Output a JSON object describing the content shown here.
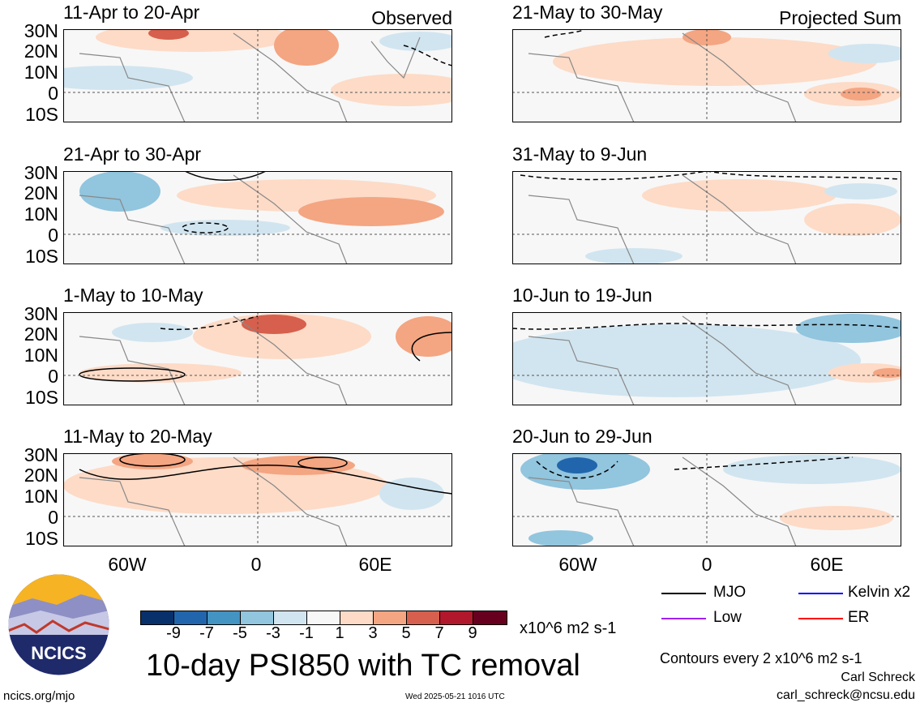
{
  "panels": [
    {
      "title": "11-Apr to 20-Apr",
      "tag": "Observed"
    },
    {
      "title": "21-Apr to 30-Apr",
      "tag": ""
    },
    {
      "title": "1-May to 10-May",
      "tag": ""
    },
    {
      "title": "11-May to 20-May",
      "tag": ""
    },
    {
      "title": "21-May to 30-May",
      "tag": "Projected Sum"
    },
    {
      "title": "31-May to 9-Jun",
      "tag": ""
    },
    {
      "title": "10-Jun to 19-Jun",
      "tag": ""
    },
    {
      "title": "20-Jun to 29-Jun",
      "tag": ""
    }
  ],
  "lat_labels": [
    "30N",
    "20N",
    "10N",
    "0",
    "10S"
  ],
  "lon_labels": [
    "60W",
    "0",
    "60E"
  ],
  "colorbar": {
    "colors": [
      "#08306b",
      "#2166ac",
      "#4393c3",
      "#92c5de",
      "#d1e5f0",
      "#f7f7f7",
      "#fddbc7",
      "#f4a582",
      "#d6604d",
      "#b2182b",
      "#67001f"
    ],
    "labels": [
      "-9",
      "-7",
      "-5",
      "-3",
      "-1",
      "1",
      "3",
      "5",
      "7",
      "9"
    ],
    "units": "x10^6 m2 s-1"
  },
  "main_title": "10-day PSI850 with TC removal",
  "legend": [
    {
      "name": "MJO",
      "color": "#000000"
    },
    {
      "name": "Kelvin x2",
      "color": "#0000ff"
    },
    {
      "name": "Low",
      "color": "#a020f0"
    },
    {
      "name": "ER",
      "color": "#ff0000"
    }
  ],
  "contour_note": "Contours every 2 x10^6 m2 s-1",
  "author": "Carl Schreck",
  "email": "carl_schreck@ncsu.edu",
  "website": "ncics.org/mjo",
  "timestamp": "Wed 2025-05-21 1016 UTC",
  "logo_text": "NCICS"
}
